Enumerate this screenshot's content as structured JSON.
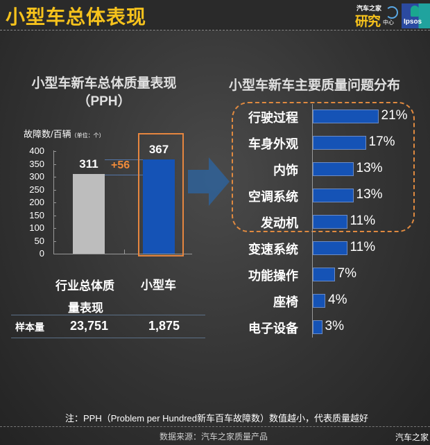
{
  "header": {
    "title": "小型车总体表现",
    "logo_autohome": {
      "line1": "汽车之家",
      "line2": "研究",
      "line3": "中心"
    },
    "logo_ipsos": "Ipsos"
  },
  "left_panel": {
    "title_line1": "小型车新车总体质量表现",
    "title_line2": "（PPH）",
    "ylabel": "故障数/百辆",
    "ylabel_unit": "（单位：个）",
    "diff_label": "+56",
    "categories": [
      "行业总体质量表现",
      "小型车"
    ],
    "cat1_line1": "行业总体质",
    "cat1_line2": "量表现",
    "cat2": "小型车",
    "sample": {
      "label": "样本量",
      "values": [
        "23,751",
        "1,875"
      ]
    }
  },
  "right_panel": {
    "title": "小型车新车主要质量问题分布"
  },
  "chart_data": [
    {
      "type": "bar",
      "title": "小型车新车总体质量表现（PPH）",
      "ylabel": "故障数/百辆（单位：个）",
      "xlabel": "",
      "categories": [
        "行业总体质量表现",
        "小型车"
      ],
      "values": [
        311,
        367
      ],
      "ylim": [
        0,
        400
      ],
      "yticks": [
        0,
        50,
        100,
        150,
        200,
        250,
        300,
        350,
        400
      ],
      "annotation": "+56",
      "sample_size": [
        "23,751",
        "1,875"
      ],
      "colors": [
        "#bdbdbd",
        "#1553b6"
      ]
    },
    {
      "type": "bar",
      "orientation": "horizontal",
      "title": "小型车新车主要质量问题分布",
      "categories": [
        "行驶过程",
        "车身外观",
        "内饰",
        "空调系统",
        "发动机",
        "变速系统",
        "功能操作",
        "座椅",
        "电子设备"
      ],
      "values": [
        21,
        17,
        13,
        13,
        11,
        11,
        7,
        4,
        3
      ],
      "value_labels": [
        "21%",
        "17%",
        "13%",
        "13%",
        "11%",
        "11%",
        "7%",
        "4%",
        "3%"
      ],
      "highlighted_top": 5,
      "color": "#1553b6"
    }
  ],
  "footer": {
    "note": "注：PPH（Problem  per Hundred新车百车故障数）数值越小，代表质量越好",
    "source": "数据来源：汽车之家质量产品",
    "watermark": "汽车之家"
  }
}
